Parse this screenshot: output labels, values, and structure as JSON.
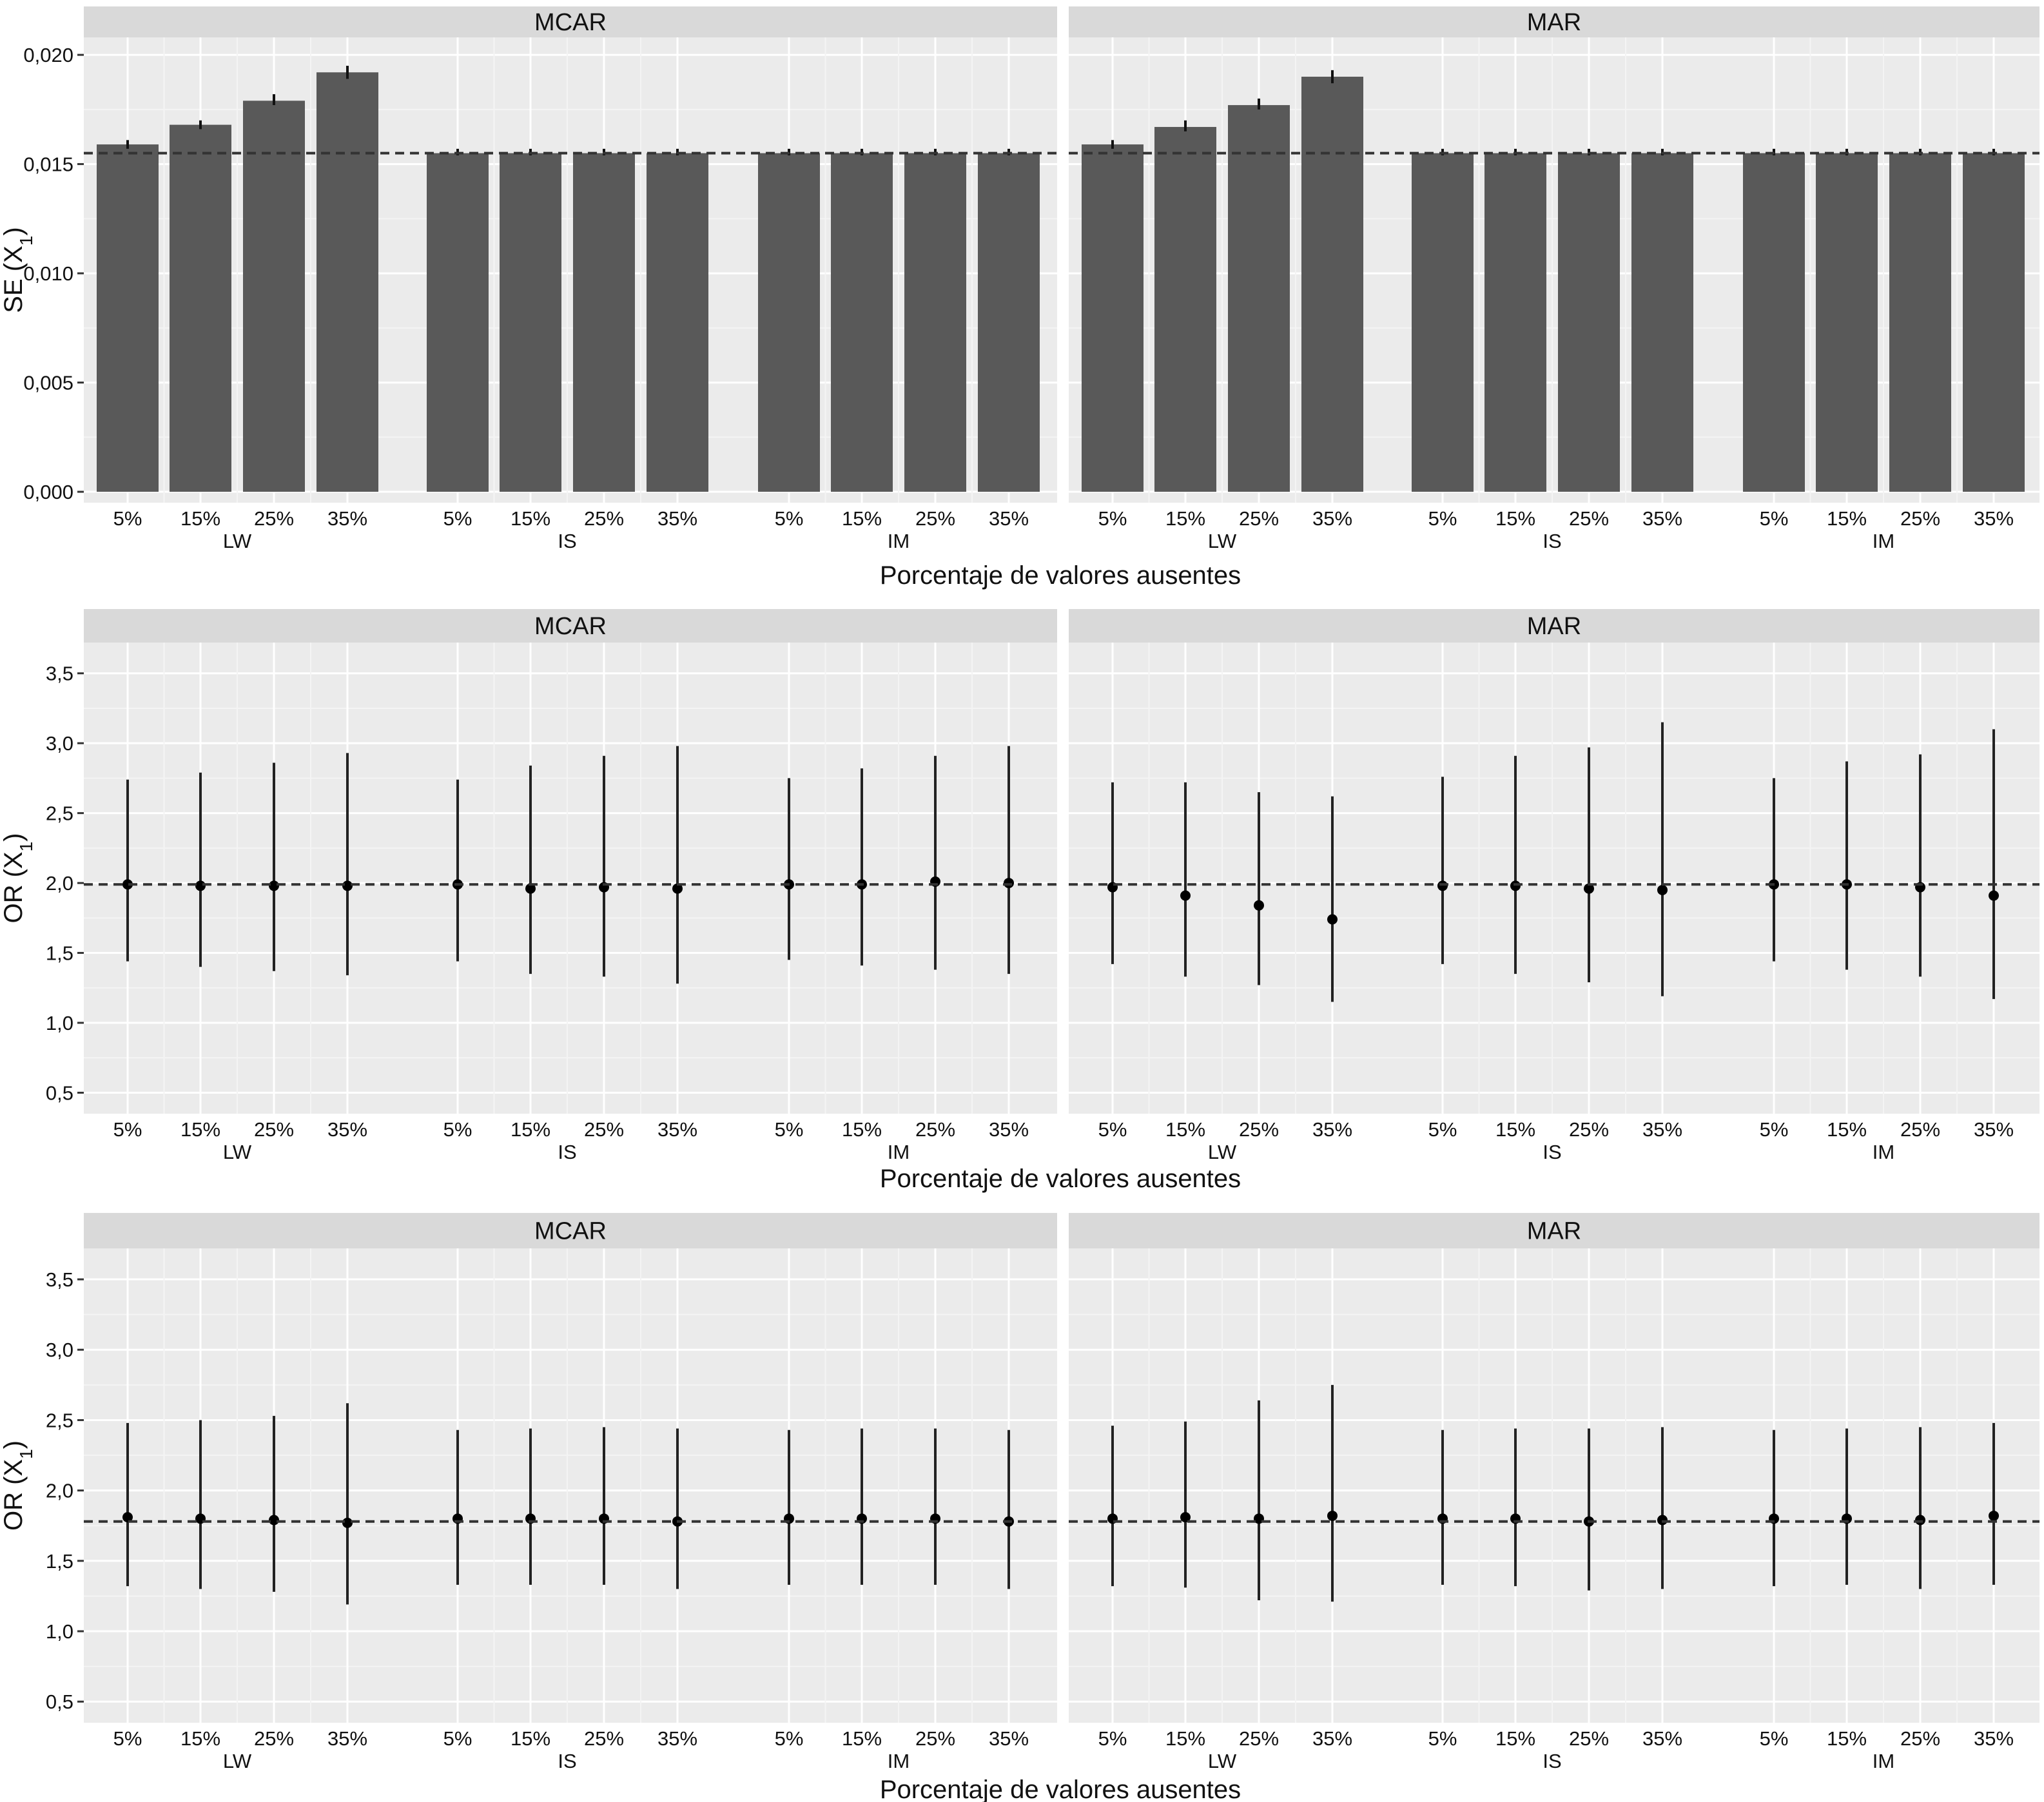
{
  "chart_data": [
    {
      "type": "bar",
      "ylabel": "SE (X",
      "ylabel_subscript": "1",
      "ylabel_close": ")",
      "xlabel": "Porcentaje de valores ausentes",
      "yticks": [
        "0,000",
        "0,005",
        "0,010",
        "0,015",
        "0,020"
      ],
      "ytick_values": [
        0,
        0.005,
        0.01,
        0.015,
        0.02
      ],
      "ylim": [
        -0.0005,
        0.0208
      ],
      "reference_line": 0.0155,
      "methods": [
        "LW",
        "IS",
        "IM"
      ],
      "categories": [
        "5%",
        "15%",
        "25%",
        "35%"
      ],
      "panels": [
        {
          "strip": "MCAR",
          "values": [
            [
              0.0159,
              0.0168,
              0.0179,
              0.0192
            ],
            [
              0.0155,
              0.0155,
              0.0155,
              0.0155
            ],
            [
              0.0155,
              0.0155,
              0.0155,
              0.0155
            ]
          ],
          "err_low": [
            [
              0.0157,
              0.0166,
              0.0177,
              0.0189
            ],
            [
              0.0154,
              0.0154,
              0.0154,
              0.0154
            ],
            [
              0.0154,
              0.0154,
              0.0154,
              0.0154
            ]
          ],
          "err_high": [
            [
              0.0161,
              0.017,
              0.0182,
              0.0195
            ],
            [
              0.0157,
              0.0157,
              0.0157,
              0.0157
            ],
            [
              0.0157,
              0.0157,
              0.0157,
              0.0157
            ]
          ]
        },
        {
          "strip": "MAR",
          "values": [
            [
              0.0159,
              0.0167,
              0.0177,
              0.019
            ],
            [
              0.0155,
              0.0155,
              0.0155,
              0.0155
            ],
            [
              0.0155,
              0.0155,
              0.0155,
              0.0155
            ]
          ],
          "err_low": [
            [
              0.0157,
              0.0165,
              0.0175,
              0.0187
            ],
            [
              0.0154,
              0.0154,
              0.0154,
              0.0154
            ],
            [
              0.0154,
              0.0154,
              0.0154,
              0.0154
            ]
          ],
          "err_high": [
            [
              0.0161,
              0.017,
              0.018,
              0.0193
            ],
            [
              0.0157,
              0.0157,
              0.0157,
              0.0157
            ],
            [
              0.0157,
              0.0157,
              0.0157,
              0.0157
            ]
          ]
        }
      ]
    },
    {
      "type": "scatter",
      "ylabel": "OR (X",
      "ylabel_subscript": "1",
      "ylabel_close": ")",
      "xlabel": "Porcentaje de valores ausentes",
      "yticks": [
        "0,5",
        "1,0",
        "1,5",
        "2,0",
        "2,5",
        "3,0",
        "3,5"
      ],
      "ytick_values": [
        0.5,
        1.0,
        1.5,
        2.0,
        2.5,
        3.0,
        3.5
      ],
      "ylim": [
        0.35,
        3.72
      ],
      "reference_line": 1.99,
      "methods": [
        "LW",
        "IS",
        "IM"
      ],
      "categories": [
        "5%",
        "15%",
        "25%",
        "35%"
      ],
      "panels": [
        {
          "strip": "MCAR",
          "estimate": [
            [
              1.99,
              1.98,
              1.98,
              1.98
            ],
            [
              1.99,
              1.96,
              1.97,
              1.96
            ],
            [
              1.99,
              1.99,
              2.01,
              2.0
            ]
          ],
          "lower": [
            [
              1.44,
              1.4,
              1.37,
              1.34
            ],
            [
              1.44,
              1.35,
              1.33,
              1.28
            ],
            [
              1.45,
              1.41,
              1.38,
              1.35
            ]
          ],
          "upper": [
            [
              2.74,
              2.79,
              2.86,
              2.93
            ],
            [
              2.74,
              2.84,
              2.91,
              2.98
            ],
            [
              2.75,
              2.82,
              2.91,
              2.98
            ]
          ]
        },
        {
          "strip": "MAR",
          "estimate": [
            [
              1.97,
              1.91,
              1.84,
              1.74
            ],
            [
              1.98,
              1.98,
              1.96,
              1.95
            ],
            [
              1.99,
              1.99,
              1.97,
              1.91
            ]
          ],
          "lower": [
            [
              1.42,
              1.33,
              1.27,
              1.15
            ],
            [
              1.42,
              1.35,
              1.29,
              1.19
            ],
            [
              1.44,
              1.38,
              1.33,
              1.17
            ]
          ],
          "upper": [
            [
              2.72,
              2.72,
              2.65,
              2.62
            ],
            [
              2.76,
              2.91,
              2.97,
              3.15
            ],
            [
              2.75,
              2.87,
              2.92,
              3.1
            ]
          ]
        }
      ]
    },
    {
      "type": "scatter",
      "ylabel": "OR (X",
      "ylabel_subscript": "1",
      "ylabel_close": ")",
      "xlabel": "Porcentaje de valores ausentes",
      "yticks": [
        "0,5",
        "1,0",
        "1,5",
        "2,0",
        "2,5",
        "3,0",
        "3,5"
      ],
      "ytick_values": [
        0.5,
        1.0,
        1.5,
        2.0,
        2.5,
        3.0,
        3.5
      ],
      "ylim": [
        0.35,
        3.72
      ],
      "reference_line": 1.78,
      "methods": [
        "LW",
        "IS",
        "IM"
      ],
      "categories": [
        "5%",
        "15%",
        "25%",
        "35%"
      ],
      "panels": [
        {
          "strip": "MCAR",
          "estimate": [
            [
              1.81,
              1.8,
              1.79,
              1.77
            ],
            [
              1.8,
              1.8,
              1.8,
              1.78
            ],
            [
              1.8,
              1.8,
              1.8,
              1.78
            ]
          ],
          "lower": [
            [
              1.32,
              1.3,
              1.28,
              1.19
            ],
            [
              1.33,
              1.33,
              1.33,
              1.3
            ],
            [
              1.33,
              1.33,
              1.33,
              1.3
            ]
          ],
          "upper": [
            [
              2.48,
              2.5,
              2.53,
              2.62
            ],
            [
              2.43,
              2.44,
              2.45,
              2.44
            ],
            [
              2.43,
              2.44,
              2.44,
              2.43
            ]
          ]
        },
        {
          "strip": "MAR",
          "estimate": [
            [
              1.8,
              1.81,
              1.8,
              1.82
            ],
            [
              1.8,
              1.8,
              1.78,
              1.79
            ],
            [
              1.8,
              1.8,
              1.79,
              1.82
            ]
          ],
          "lower": [
            [
              1.32,
              1.31,
              1.22,
              1.21
            ],
            [
              1.33,
              1.32,
              1.29,
              1.3
            ],
            [
              1.32,
              1.33,
              1.3,
              1.33
            ]
          ],
          "upper": [
            [
              2.46,
              2.49,
              2.64,
              2.75
            ],
            [
              2.43,
              2.44,
              2.44,
              2.45
            ],
            [
              2.43,
              2.44,
              2.45,
              2.48
            ]
          ]
        }
      ]
    }
  ]
}
